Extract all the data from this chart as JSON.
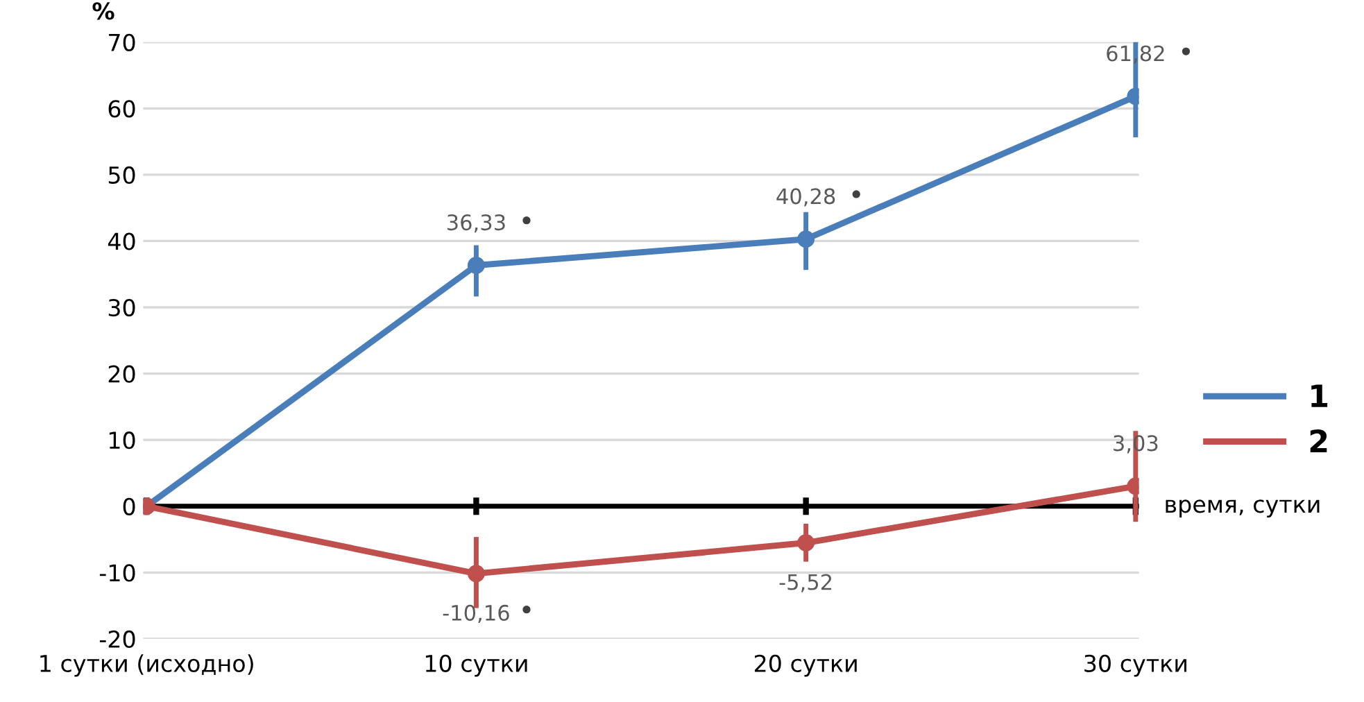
{
  "chart_data": {
    "type": "line",
    "ylabel": "%",
    "xlabel": "время, сутки",
    "categories": [
      "1 сутки (исходно)",
      "10 сутки",
      "20 сутки",
      "30 сутки"
    ],
    "series": [
      {
        "name": "1",
        "color": "#4a7ebb",
        "values": [
          0,
          36.33,
          40.28,
          61.82
        ],
        "errors": [
          null,
          [
            32,
            39
          ],
          [
            36,
            44
          ],
          [
            56,
            70
          ]
        ],
        "value_labels": [
          null,
          "36,33",
          "40,28",
          "61,82"
        ]
      },
      {
        "name": "2",
        "color": "#c0504d",
        "values": [
          0,
          -10.16,
          -5.52,
          3.03
        ],
        "errors": [
          null,
          [
            -15,
            -5
          ],
          [
            -8,
            -3
          ],
          [
            -2,
            11
          ]
        ],
        "value_labels": [
          null,
          "-10,16",
          "-5,52",
          "3,03"
        ]
      }
    ],
    "ylim": [
      -20,
      70
    ],
    "yticks": [
      -20,
      -10,
      0,
      10,
      20,
      30,
      40,
      50,
      60,
      70
    ],
    "ref_lines": [
      {
        "axis": "y",
        "value": 0,
        "color": "#000000"
      }
    ],
    "annotations": [
      "•",
      "•",
      "•",
      "•"
    ],
    "grid": "y",
    "legend": "right",
    "marker": "circle",
    "line_style": "solid"
  }
}
